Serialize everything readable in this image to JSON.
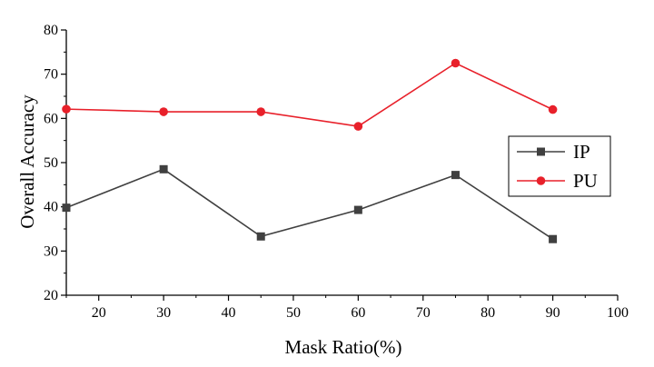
{
  "chart_data": {
    "type": "line",
    "title": "",
    "xlabel": "Mask Ratio(%)",
    "ylabel": "Overall Accuracy",
    "xlim": [
      15,
      100
    ],
    "ylim": [
      20,
      80
    ],
    "x_ticks": [
      20,
      30,
      40,
      50,
      60,
      70,
      80,
      90,
      100
    ],
    "y_ticks": [
      20,
      30,
      40,
      50,
      60,
      70,
      80
    ],
    "grid": false,
    "legend_position": "right",
    "x": [
      15,
      30,
      45,
      60,
      75,
      90
    ],
    "series": [
      {
        "name": "IP",
        "color": "#404040",
        "marker": "square",
        "values": [
          39.8,
          48.5,
          33.3,
          39.3,
          47.2,
          32.7
        ]
      },
      {
        "name": "PU",
        "color": "#e8202a",
        "marker": "circle",
        "values": [
          62.1,
          61.5,
          61.5,
          58.2,
          72.5,
          62.0
        ]
      }
    ]
  }
}
